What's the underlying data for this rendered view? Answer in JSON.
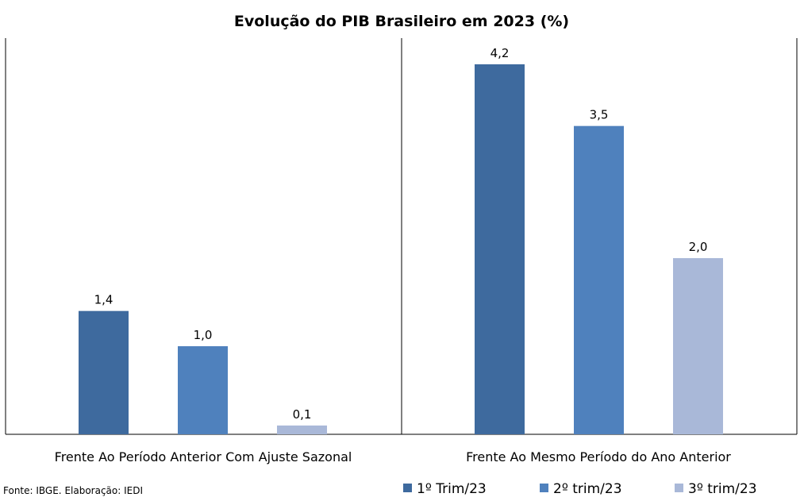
{
  "chart_data": {
    "type": "bar",
    "title": "Evolução do PIB Brasileiro em 2023 (%)",
    "categories": [
      "Frente Ao Período Anterior Com Ajuste Sazonal",
      "Frente Ao Mesmo Período do Ano Anterior"
    ],
    "series": [
      {
        "name": "1º Trim/23",
        "color": "#3e6a9e",
        "values": [
          1.4,
          4.2
        ],
        "labels": [
          "1,4",
          "4,2"
        ]
      },
      {
        "name": "2º trim/23",
        "color": "#4f81bd",
        "values": [
          1.0,
          3.5
        ],
        "labels": [
          "1,0",
          "3,5"
        ]
      },
      {
        "name": "3º trim/23",
        "color": "#a9b8d8",
        "values": [
          0.1,
          2.0
        ],
        "labels": [
          "0,1",
          "2,0"
        ]
      }
    ],
    "ylim": [
      0,
      4.2
    ],
    "grid": false,
    "legend_position": "bottom-right",
    "source": "Fonte: IBGE. Elaboração: IEDI"
  }
}
